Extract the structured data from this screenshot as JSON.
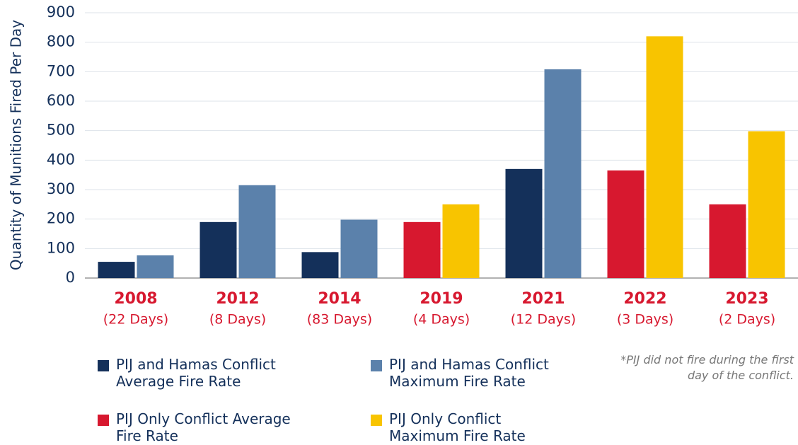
{
  "chart_data": {
    "type": "bar",
    "y_label": "Quantity of Munitions Fired Per Day",
    "categories": [
      "2008",
      "2012",
      "2014",
      "2019",
      "2021",
      "2022",
      "2023"
    ],
    "category_sublabels": [
      "(22 Days)",
      "(8 Days)",
      "(83 Days)",
      "(4 Days)",
      "(12 Days)",
      "(3 Days)",
      "(2 Days)"
    ],
    "series": [
      {
        "name": "PIJ and Hamas Conflict Average Fire Rate",
        "color": "#14305a",
        "values": [
          55,
          190,
          88,
          null,
          370,
          null,
          null
        ]
      },
      {
        "name": "PIJ and Hamas Conflict Maximum Fire Rate",
        "color": "#5b81ab",
        "values": [
          77,
          315,
          198,
          null,
          708,
          null,
          null
        ]
      },
      {
        "name": "PIJ Only Conflict Average Fire Rate",
        "color": "#d7182f",
        "values": [
          null,
          null,
          null,
          190,
          null,
          365,
          250
        ]
      },
      {
        "name": "PIJ Only Conflict Maximum Fire Rate",
        "color": "#f8c400",
        "values": [
          null,
          null,
          null,
          250,
          null,
          820,
          498
        ]
      }
    ],
    "ylim": [
      0,
      900
    ],
    "yticks": [
      0,
      100,
      200,
      300,
      400,
      500,
      600,
      700,
      800,
      900
    ],
    "grid": true,
    "note": "*PIJ did not fire during the first day of the conflict."
  }
}
